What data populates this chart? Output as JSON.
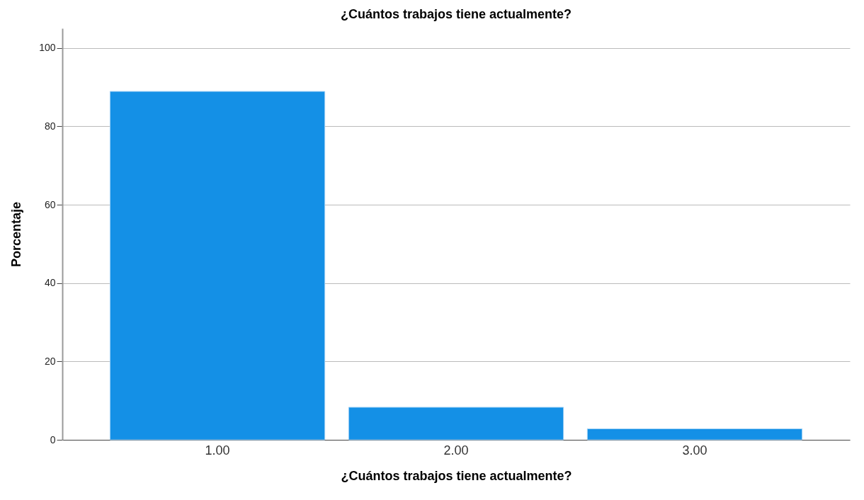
{
  "chart_data": {
    "type": "bar",
    "title": "¿Cuántos trabajos tiene actualmente?",
    "xlabel": "¿Cuántos trabajos tiene actualmente?",
    "ylabel": "Porcentaje",
    "categories": [
      "1.00",
      "2.00",
      "3.00"
    ],
    "values": [
      88.9,
      8.3,
      2.8
    ],
    "color": "#1490e6",
    "ylim": [
      0,
      105
    ],
    "yticks": [
      0,
      20,
      40,
      60,
      80,
      100
    ],
    "grid": "y"
  }
}
